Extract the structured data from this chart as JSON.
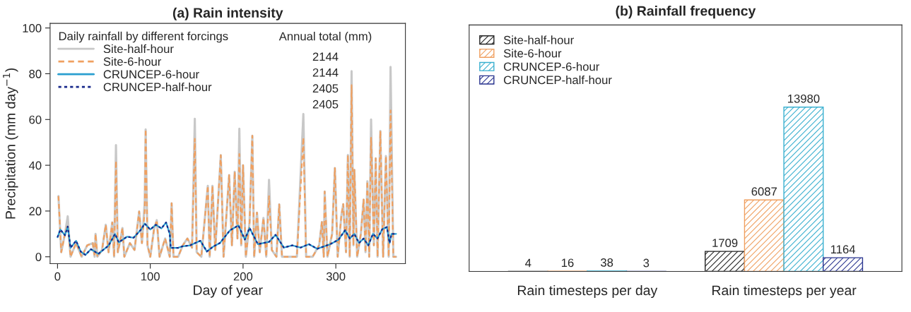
{
  "chart_data": [
    {
      "type": "line",
      "title": "(a) Rain intensity",
      "xlabel": "Day of year",
      "ylabel": "Precipitation (mm day$^{−1}$)",
      "legend_title": "Daily rainfall by different forcings",
      "legend": "top left",
      "xlim": [
        -8,
        375
      ],
      "xticks": [
        0,
        100,
        200,
        300
      ],
      "ylim": [
        -3,
        102
      ],
      "yticks": [
        0,
        20,
        40,
        60,
        80,
        100
      ],
      "annotations": [
        "Annual total (mm)",
        "2144",
        "2144",
        "2405",
        "2405"
      ],
      "series": [
        {
          "name": "Site-half-hour",
          "color": "#c8c8c8",
          "line_style": "solid",
          "x": [
            1,
            4,
            8,
            11,
            14,
            20,
            26,
            32,
            38,
            40,
            41,
            43,
            48,
            52,
            55,
            59,
            61,
            63,
            65,
            68,
            70,
            72,
            78,
            83,
            88,
            91,
            94,
            95,
            97,
            100,
            104,
            107,
            110,
            116,
            121,
            123,
            125,
            130,
            135,
            140,
            145,
            148,
            150,
            155,
            162,
            164,
            167,
            170,
            176,
            179,
            185,
            188,
            191,
            194,
            196,
            198,
            200,
            203,
            207,
            210,
            212,
            215,
            218,
            222,
            225,
            228,
            231,
            236,
            239,
            242,
            250,
            258,
            265,
            268,
            275,
            282,
            285,
            287,
            288,
            291,
            296,
            299,
            302,
            306,
            308,
            311,
            313,
            315,
            317,
            319,
            320,
            323,
            327,
            330,
            332,
            334,
            336,
            338,
            341,
            343,
            345,
            348,
            351,
            354,
            357,
            359,
            362,
            365
          ],
          "values": [
            26.5,
            2,
            10,
            17.7,
            0,
            6,
            0,
            5,
            6,
            0,
            10,
            0,
            3,
            14,
            2,
            15,
            0,
            48.8,
            2,
            8,
            12.6,
            0,
            6,
            3,
            19.8,
            6,
            24,
            55.7,
            5,
            0,
            12,
            16,
            0,
            8,
            0,
            23.4,
            0,
            0,
            5,
            8,
            4,
            60.3,
            2,
            0,
            31,
            0,
            31,
            3,
            44.4,
            0,
            35.7,
            5,
            37.2,
            8,
            56,
            5,
            40,
            0,
            15,
            52.9,
            0,
            19.3,
            2,
            17,
            0,
            33.6,
            3,
            0,
            22.9,
            0,
            0,
            0,
            62.4,
            0,
            0,
            5,
            15.2,
            0,
            28.5,
            0,
            10,
            38.8,
            0,
            18,
            23,
            2,
            44.5,
            0,
            81.1,
            5,
            38,
            0,
            10,
            25,
            2,
            33,
            0,
            60,
            5,
            43,
            0,
            55,
            0,
            44,
            0,
            83,
            0,
            0
          ]
        },
        {
          "name": "Site-6-hour",
          "color": "#f0a060",
          "line_style": "dashed",
          "x": [
            1,
            4,
            8,
            11,
            14,
            20,
            26,
            32,
            38,
            40,
            41,
            43,
            48,
            52,
            55,
            59,
            61,
            63,
            65,
            68,
            70,
            72,
            78,
            83,
            88,
            91,
            94,
            95,
            97,
            100,
            104,
            107,
            110,
            116,
            121,
            123,
            125,
            130,
            135,
            140,
            145,
            148,
            150,
            155,
            162,
            164,
            167,
            170,
            176,
            179,
            185,
            188,
            191,
            194,
            196,
            198,
            200,
            203,
            207,
            210,
            212,
            215,
            218,
            222,
            225,
            228,
            231,
            236,
            239,
            242,
            250,
            258,
            265,
            268,
            275,
            282,
            285,
            287,
            288,
            291,
            296,
            299,
            302,
            306,
            308,
            311,
            313,
            315,
            317,
            319,
            320,
            323,
            327,
            330,
            332,
            334,
            336,
            338,
            341,
            343,
            345,
            348,
            351,
            354,
            357,
            359,
            362,
            365
          ],
          "values": [
            26.5,
            2,
            10,
            14,
            0,
            6,
            0,
            5,
            6,
            0,
            10,
            0,
            3,
            14,
            2,
            15,
            0,
            41.9,
            2,
            8,
            12.6,
            0,
            6,
            3,
            19.8,
            6,
            20,
            55.7,
            5,
            0,
            12,
            16,
            0,
            8,
            0,
            23.4,
            0,
            0,
            5,
            8,
            4,
            51.6,
            2,
            0,
            31,
            0,
            31,
            3,
            44.4,
            0,
            35.7,
            5,
            37.2,
            8,
            44.9,
            5,
            40,
            0,
            15,
            52.9,
            0,
            19.3,
            2,
            17,
            0,
            26.5,
            3,
            0,
            22.9,
            0,
            0,
            0,
            52.1,
            0,
            0,
            5,
            15.2,
            0,
            28.5,
            0,
            10,
            38.8,
            0,
            18,
            23,
            2,
            44.5,
            0,
            75,
            5,
            38,
            0,
            10,
            25,
            2,
            33,
            0,
            52,
            5,
            43,
            0,
            55,
            0,
            44,
            0,
            64,
            0,
            0
          ]
        },
        {
          "name": "CRUNCEP-6-hour",
          "color": "#2a9fd0",
          "line_style": "solid",
          "x": [
            0,
            3,
            8,
            11,
            14,
            20,
            25,
            30,
            36,
            44,
            55,
            62,
            66,
            75,
            82,
            90,
            94,
            100,
            106,
            112,
            117,
            121,
            122,
            130,
            134,
            143,
            154,
            161,
            168,
            175,
            186,
            195,
            202,
            207,
            216,
            228,
            235,
            244,
            253,
            262,
            271,
            280,
            294,
            303,
            310,
            315,
            320,
            325,
            330,
            335,
            340,
            345,
            350,
            355,
            358,
            360,
            365
          ],
          "values": [
            8.5,
            11.9,
            9.4,
            13.2,
            3.9,
            7,
            2.3,
            0.8,
            3.3,
            1.3,
            4.9,
            10,
            6.3,
            8.8,
            8.3,
            11.9,
            14.5,
            11.9,
            14,
            12.4,
            15,
            10,
            3.9,
            3.9,
            4.5,
            5,
            7,
            2.3,
            4.5,
            6,
            11.6,
            13.7,
            7.5,
            12.6,
            5.5,
            6.5,
            9.6,
            4,
            5,
            4,
            5.5,
            3.5,
            5.5,
            7.5,
            11.6,
            8,
            10,
            6,
            8,
            5,
            10,
            8,
            12,
            13,
            6,
            10,
            10
          ]
        },
        {
          "name": "CRUNCEP-half-hour",
          "color": "#1a2a8c",
          "line_style": "dotted",
          "x": [
            0,
            3,
            8,
            11,
            14,
            20,
            25,
            30,
            36,
            44,
            55,
            62,
            66,
            75,
            82,
            90,
            94,
            100,
            106,
            112,
            117,
            121,
            122,
            130,
            134,
            143,
            154,
            161,
            168,
            175,
            186,
            195,
            202,
            207,
            216,
            228,
            235,
            244,
            253,
            262,
            271,
            280,
            294,
            303,
            310,
            315,
            320,
            325,
            330,
            335,
            340,
            345,
            350,
            355,
            358,
            360,
            365
          ],
          "values": [
            8.5,
            11.9,
            9.4,
            13.2,
            3.9,
            7,
            2.3,
            0.8,
            3.3,
            1.3,
            4.9,
            10,
            6.3,
            8.8,
            8.3,
            11.9,
            14.5,
            11.9,
            14,
            12.4,
            15,
            10,
            3.9,
            3.9,
            4.5,
            5,
            7,
            2.3,
            4.5,
            6,
            11.6,
            13.7,
            7.5,
            12.6,
            5.5,
            6.5,
            9.6,
            4,
            5,
            4,
            5.5,
            3.5,
            5.5,
            7.5,
            11.6,
            8,
            10,
            6,
            8,
            5,
            10,
            8,
            12,
            13,
            6,
            10,
            10
          ]
        }
      ]
    },
    {
      "type": "bar",
      "title": "(b) Rainfall frequency",
      "categories": [
        "Rain timesteps per day",
        "Rain timesteps per year"
      ],
      "legend": "top left",
      "data_labels": true,
      "tick_labels": "x",
      "series": [
        {
          "name": "Site-half-hour",
          "color": "#222222",
          "values": [
            4,
            1709
          ]
        },
        {
          "name": "Site-6-hour",
          "color": "#f0a060",
          "values": [
            16,
            6087
          ]
        },
        {
          "name": "CRUNCEP-6-hour",
          "color": "#3ab0d0",
          "values": [
            38,
            13980
          ]
        },
        {
          "name": "CRUNCEP-half-hour",
          "color": "#2a3590",
          "values": [
            3,
            1164
          ]
        }
      ]
    }
  ]
}
